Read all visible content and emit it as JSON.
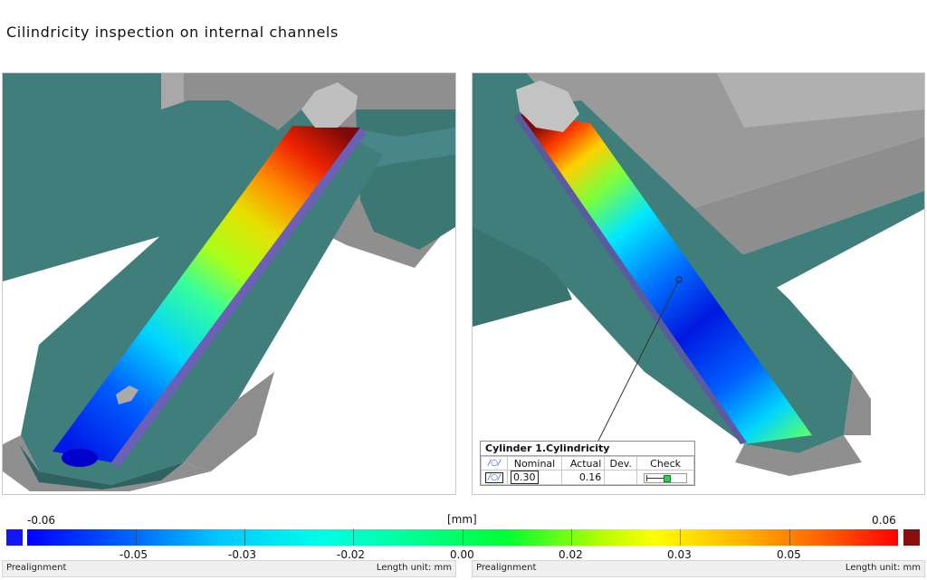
{
  "title": "Cilindricity inspection on internal channels",
  "inspection": {
    "name": "Cylinder 1.Cylindricity",
    "headers": [
      "Nominal",
      "Actual",
      "Dev.",
      "Check"
    ],
    "nominal": "0.30",
    "actual": "0.16",
    "dev": "",
    "check_fraction": 0.53
  },
  "legend": {
    "unit": "[mm]",
    "min_label": "-0.06",
    "max_label": "0.06",
    "ticks": [
      "-0.05",
      "-0.03",
      "-0.02",
      "0.00",
      "0.02",
      "0.03",
      "0.05"
    ]
  },
  "status_left": {
    "mode": "Prealignment",
    "length_unit": "Length unit: mm"
  },
  "status_right": {
    "mode": "Prealignment",
    "length_unit": "Length unit: mm"
  },
  "colors": {
    "teal": "#3f7e7a",
    "gray": "#9a9a9a",
    "low": "#0000ff",
    "high": "#8a0f0f"
  }
}
